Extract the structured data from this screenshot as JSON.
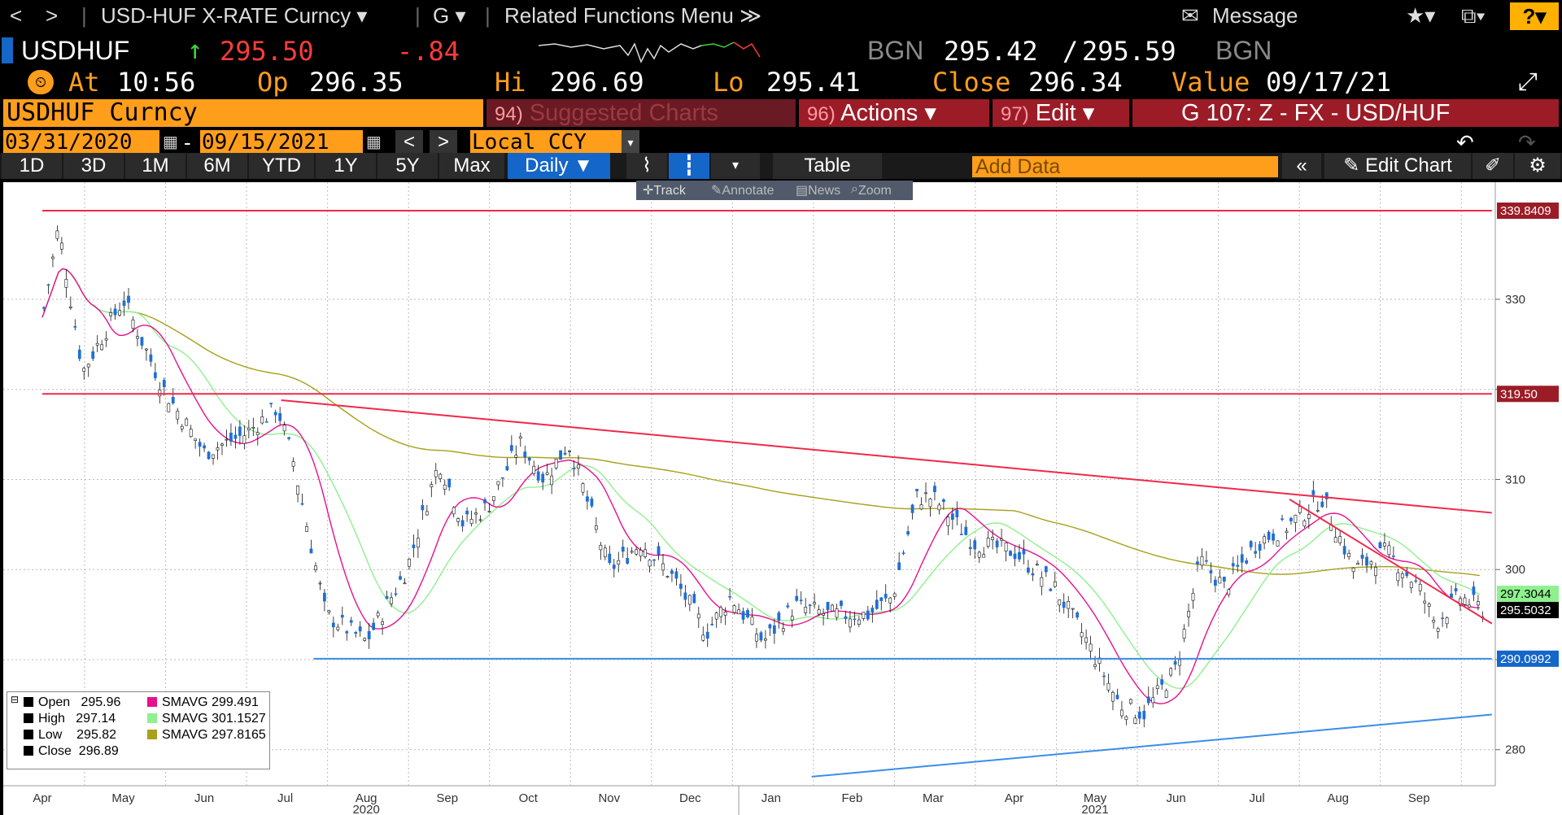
{
  "nav": {
    "back": "<",
    "forward": ">"
  },
  "ticker_menu": "USD-HUF X-RATE Curncy ▾",
  "g_menu": "G ▾",
  "related_menu": "Related Functions Menu ≫",
  "message": "Message",
  "help": "?",
  "quote": {
    "symbol": "USDHUF",
    "arrow": "↑",
    "last": "295.50",
    "change": "-.84",
    "bid_src": "BGN",
    "bid": "295.42",
    "sep": "/",
    "ask": "295.59",
    "ask_src": "BGN",
    "at_label": "At",
    "time": "10:56",
    "op_label": "Op",
    "open": "296.35",
    "hi_label": "Hi",
    "high": "296.69",
    "lo_label": "Lo",
    "low": "295.41",
    "close_label": "Close",
    "close": "296.34",
    "value_label": "Value",
    "value_date": "09/17/21"
  },
  "title": "USDHUF Curncy",
  "buttons": {
    "suggested_num": "94)",
    "suggested": "Suggested Charts",
    "actions_num": "96)",
    "actions": "Actions ▾",
    "edit_num": "97)",
    "edit": "Edit ▾",
    "chart_id": "G 107: Z - FX - USD/HUF"
  },
  "dates": {
    "start": "03/31/2020",
    "dash": "-",
    "end": "09/15/2021",
    "currency": "Local CCY"
  },
  "periods": [
    "1D",
    "3D",
    "1M",
    "6M",
    "YTD",
    "1Y",
    "5Y",
    "Max"
  ],
  "frequency": "Daily ▼",
  "table_label": "Table",
  "add_data_placeholder": "Add Data",
  "edit_chart": "Edit Chart",
  "subtools": {
    "track": "Track",
    "annotate": "Annotate",
    "news": "News",
    "zoom": "Zoom"
  },
  "legend": {
    "open_label": "Open",
    "open": "295.96",
    "high_label": "High",
    "high": "297.14",
    "low_label": "Low",
    "low": "295.82",
    "close_label": "Close",
    "close": "296.89",
    "sma1_label": "SMAVG",
    "sma1": "299.491",
    "sma2_label": "SMAVG",
    "sma2": "301.1527",
    "sma3_label": "SMAVG",
    "sma3": "297.8165"
  },
  "colors": {
    "sma1": "#e8108e",
    "sma2": "#8ff08f",
    "sma3": "#a8a01a",
    "red_line": "#f0284a",
    "blue_line": "#3a8ee8",
    "candle": "#1f6fd8",
    "orange": "#ff9e1b"
  },
  "chart_data": {
    "type": "line",
    "ylim": [
      276,
      343
    ],
    "yticks": [
      280,
      290,
      300,
      310,
      320,
      330
    ],
    "months": [
      "Apr",
      "May",
      "Jun",
      "Jul",
      "Aug",
      "Sep",
      "Oct",
      "Nov",
      "Dec",
      "Jan",
      "Feb",
      "Mar",
      "Apr",
      "May",
      "Jun",
      "Jul",
      "Aug",
      "Sep"
    ],
    "years": [
      "2020",
      "2021"
    ],
    "series": [
      {
        "name": "USDHUF",
        "x": [
          0,
          0.2,
          0.5,
          1,
          1.5,
          2,
          2.5,
          2.9,
          3.1,
          3.5,
          4,
          4.5,
          4.9,
          5.2,
          5.5,
          5.9,
          6.2,
          6.5,
          7,
          7.4,
          7.8,
          8.2,
          8.5,
          8.9,
          9.3,
          9.7,
          10.2,
          10.5,
          10.8,
          11,
          11.5,
          12,
          12.5,
          12.9,
          13.3,
          13.6,
          14,
          14.3,
          14.6,
          15,
          15.4,
          15.8,
          16.2,
          16.6,
          17,
          17.2,
          17.5,
          17.8
        ],
        "y": [
          328,
          338,
          322,
          330,
          320,
          313,
          315,
          318,
          312,
          295,
          292,
          300,
          312,
          305,
          307,
          314,
          310,
          314,
          300,
          303,
          299,
          293,
          297,
          292,
          296,
          295,
          295,
          297,
          308,
          308,
          303,
          302,
          298,
          292,
          285,
          284,
          289,
          301,
          298,
          303,
          305,
          308,
          300,
          302,
          298,
          294,
          297,
          295.5
        ]
      },
      {
        "name": "SMAVG",
        "value": 299.491
      },
      {
        "name": "SMAVG",
        "value": 301.1527
      },
      {
        "name": "SMAVG",
        "value": 297.8165
      }
    ],
    "levels": [
      "339.8409",
      "319.50",
      "297.3044",
      "295.5032",
      "290.0992"
    ],
    "axis_labels": [
      "330",
      "310",
      "300",
      "280"
    ]
  }
}
